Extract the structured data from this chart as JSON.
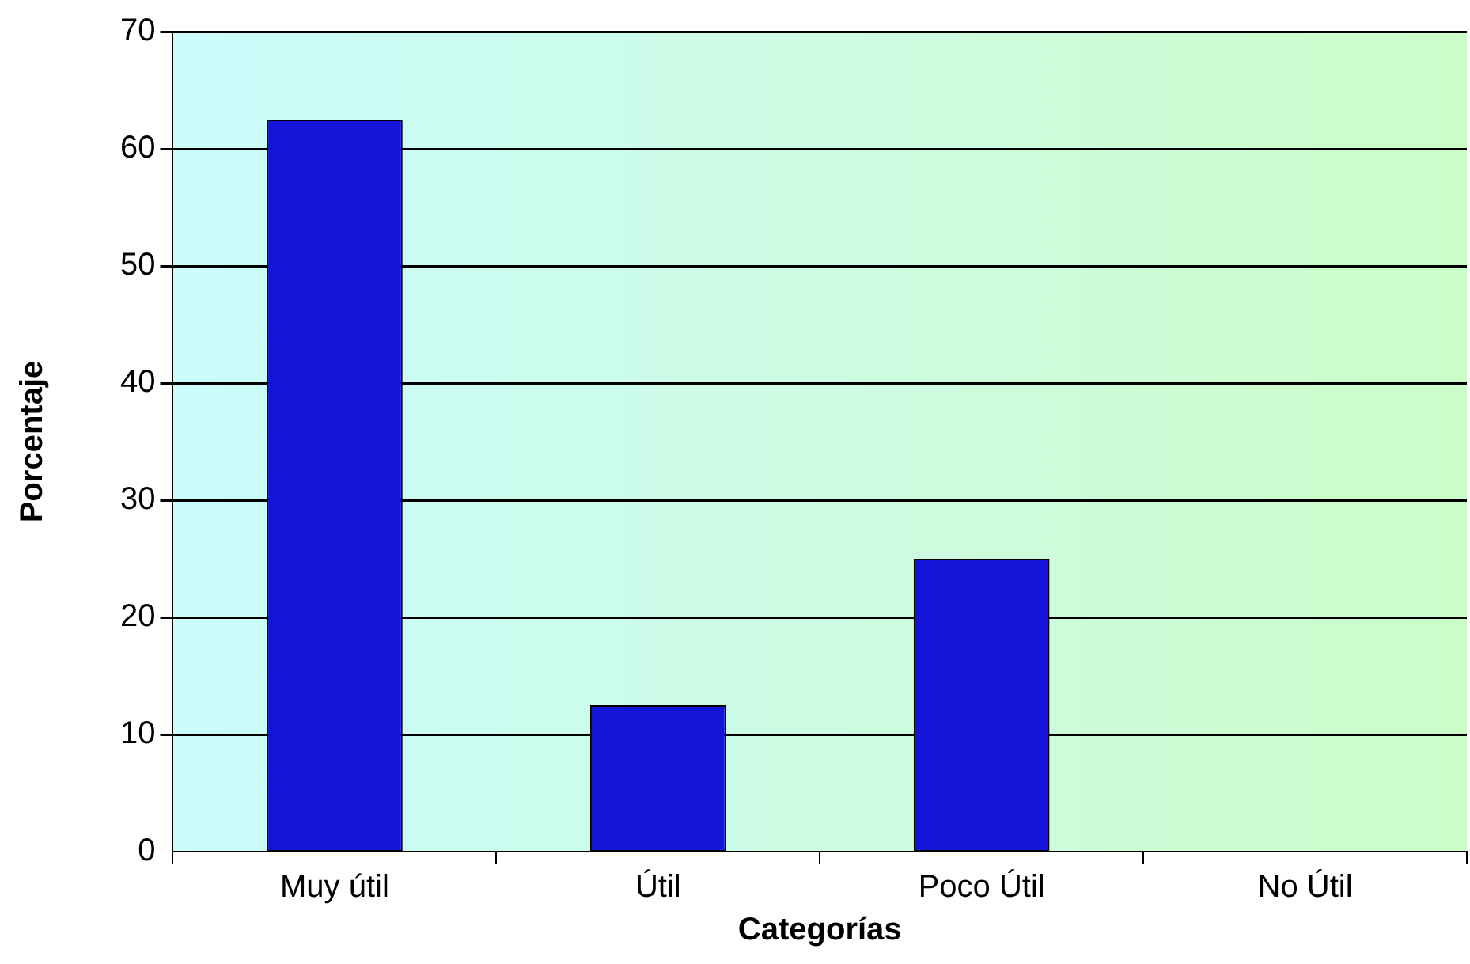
{
  "chart_data": {
    "type": "bar",
    "xlabel": "Categorías",
    "ylabel": "Porcentaje",
    "categories": [
      "Muy útil",
      "Útil",
      "Poco Útil",
      "No Útil"
    ],
    "values": [
      62.5,
      12.5,
      25,
      0
    ],
    "color": "#1414d8",
    "ylim": [
      0,
      70
    ],
    "yticks": [
      0,
      10,
      20,
      30,
      40,
      50,
      60,
      70
    ],
    "grid": "y",
    "legend": false
  }
}
